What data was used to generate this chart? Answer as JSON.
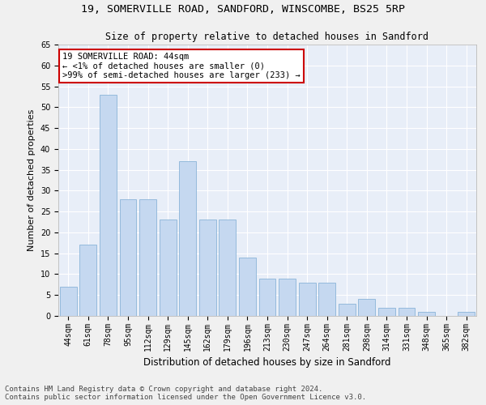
{
  "title1": "19, SOMERVILLE ROAD, SANDFORD, WINSCOMBE, BS25 5RP",
  "title2": "Size of property relative to detached houses in Sandford",
  "xlabel": "Distribution of detached houses by size in Sandford",
  "ylabel": "Number of detached properties",
  "categories": [
    "44sqm",
    "61sqm",
    "78sqm",
    "95sqm",
    "112sqm",
    "129sqm",
    "145sqm",
    "162sqm",
    "179sqm",
    "196sqm",
    "213sqm",
    "230sqm",
    "247sqm",
    "264sqm",
    "281sqm",
    "298sqm",
    "314sqm",
    "331sqm",
    "348sqm",
    "365sqm",
    "382sqm"
  ],
  "values": [
    7,
    17,
    53,
    28,
    28,
    23,
    37,
    23,
    23,
    14,
    9,
    9,
    8,
    8,
    3,
    4,
    2,
    2,
    1,
    0,
    1
  ],
  "bar_color": "#c5d8f0",
  "bar_edge_color": "#8ab4d8",
  "annotation_text": "19 SOMERVILLE ROAD: 44sqm\n← <1% of detached houses are smaller (0)\n>99% of semi-detached houses are larger (233) →",
  "annotation_box_color": "#ffffff",
  "annotation_box_edge_color": "#cc0000",
  "ylim": [
    0,
    65
  ],
  "yticks": [
    0,
    5,
    10,
    15,
    20,
    25,
    30,
    35,
    40,
    45,
    50,
    55,
    60,
    65
  ],
  "background_color": "#e8eef8",
  "footer1": "Contains HM Land Registry data © Crown copyright and database right 2024.",
  "footer2": "Contains public sector information licensed under the Open Government Licence v3.0.",
  "grid_color": "#ffffff",
  "title_fontsize": 9.5,
  "subtitle_fontsize": 8.5,
  "ylabel_fontsize": 8,
  "xlabel_fontsize": 8.5,
  "tick_fontsize": 7,
  "annotation_fontsize": 7.5,
  "footer_fontsize": 6.5
}
